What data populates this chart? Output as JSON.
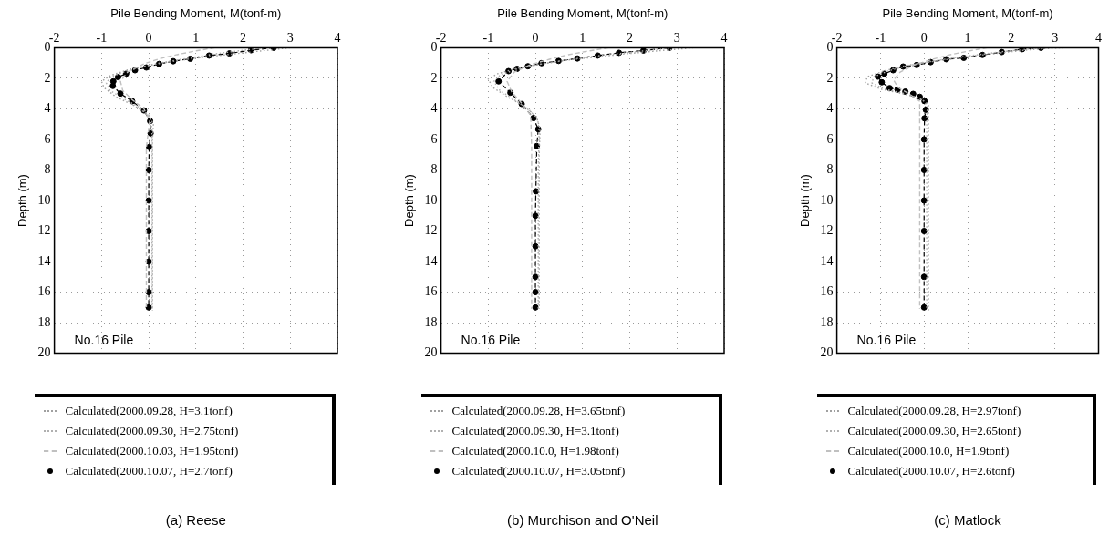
{
  "chart_data": [
    {
      "type": "line",
      "title": "(a) Reese",
      "xlabel": "Pile Bending Moment, M(tonf-m)",
      "ylabel": "Depth (m)",
      "annotations": [
        "No.16 Pile"
      ],
      "xlim": [
        -2,
        4
      ],
      "xticks": [
        -2,
        -1,
        0,
        1,
        2,
        3,
        4
      ],
      "ylim": [
        20,
        0
      ],
      "yticks": [
        0,
        2,
        4,
        6,
        8,
        10,
        12,
        14,
        16,
        18,
        20
      ],
      "grid": true,
      "legend": "bottom",
      "series": [
        {
          "name": "Calculated(2000.09.28, H=3.1tonf)",
          "color": "#a0a0a0",
          "marker": "none",
          "line_style": "dotted",
          "x": [
            3.0,
            2.4,
            1.8,
            1.2,
            0.6,
            0.1,
            -0.4,
            -0.8,
            -1.0,
            -0.95,
            -0.7,
            -0.3,
            0.0,
            0.1,
            0.08,
            0.08,
            0.08
          ],
          "values": [
            0,
            0.2,
            0.4,
            0.6,
            0.85,
            1.1,
            1.4,
            1.8,
            2.2,
            2.6,
            3.2,
            3.8,
            4.4,
            5.0,
            6.0,
            10,
            17.2
          ]
        },
        {
          "name": "Calculated(2000.09.30, H=2.75tonf)",
          "color": "#b0b0b0",
          "marker": "none",
          "line_style": "dotted",
          "x": [
            2.45,
            1.9,
            1.4,
            0.9,
            0.4,
            0,
            -0.45,
            -0.8,
            -0.9,
            -0.82,
            -0.55,
            -0.2,
            0.04,
            0.07,
            0.07,
            0.07
          ],
          "values": [
            0,
            0.2,
            0.4,
            0.65,
            0.9,
            1.15,
            1.5,
            1.9,
            2.3,
            2.8,
            3.3,
            3.9,
            4.6,
            5.4,
            8,
            17.1
          ]
        },
        {
          "name": "Calculated(2000.10.03, H=1.95tonf)",
          "color": "#c0c0c0",
          "marker": "none",
          "line_style": "dashed",
          "x": [
            1.4,
            1.0,
            0.6,
            0.25,
            -0.1,
            -0.45,
            -0.6,
            -0.55,
            -0.35,
            -0.1,
            0.02,
            -0.05,
            -0.05,
            -0.05
          ],
          "values": [
            0,
            0.2,
            0.45,
            0.7,
            1.05,
            1.6,
            2.2,
            2.8,
            3.4,
            4.0,
            4.8,
            6.5,
            12,
            17.1
          ]
        },
        {
          "name": "Calculated(2000.10.07, H=2.7tonf)",
          "color": "#000000",
          "marker": "circle",
          "line_style": "dashed",
          "x": [
            2.65,
            2.17,
            1.71,
            1.28,
            0.88,
            0.52,
            0.22,
            -0.05,
            -0.29,
            -0.48,
            -0.65,
            -0.75,
            -0.76,
            -0.6,
            -0.35,
            -0.1,
            0.03,
            0.04,
            0.01,
            0,
            0,
            0,
            0,
            0,
            0
          ],
          "values": [
            0,
            0.16,
            0.37,
            0.51,
            0.72,
            0.88,
            1.06,
            1.29,
            1.47,
            1.7,
            1.92,
            2.2,
            2.5,
            3.0,
            3.5,
            4.1,
            4.8,
            5.6,
            6.5,
            8,
            10,
            12,
            14,
            16,
            17
          ]
        }
      ]
    },
    {
      "type": "line",
      "title": "(b) Murchison and O'Neil",
      "xlabel": "Pile Bending Moment, M(tonf-m)",
      "ylabel": "Depth (m)",
      "annotations": [
        "No.16 Pile"
      ],
      "xlim": [
        -2,
        4
      ],
      "xticks": [
        -2,
        -1,
        0,
        1,
        2,
        3,
        4
      ],
      "ylim": [
        20,
        0
      ],
      "yticks": [
        0,
        2,
        4,
        6,
        8,
        10,
        12,
        14,
        16,
        18,
        20
      ],
      "grid": true,
      "legend": "bottom",
      "series": [
        {
          "name": "Calculated(2000.09.28, H=3.65tonf)",
          "color": "#a0a0a0",
          "marker": "none",
          "line_style": "dotted",
          "x": [
            3.35,
            2.6,
            1.9,
            1.3,
            0.7,
            0.15,
            -0.4,
            -0.8,
            -1.0,
            -0.9,
            -0.6,
            -0.25,
            0.02,
            0.1,
            0.08,
            0.08
          ],
          "values": [
            0,
            0.2,
            0.4,
            0.6,
            0.8,
            1.05,
            1.35,
            1.7,
            2.05,
            2.6,
            3.2,
            3.8,
            4.5,
            5.3,
            7,
            17.1
          ]
        },
        {
          "name": "Calculated(2000.09.30, H=3.1tonf)",
          "color": "#b0b0b0",
          "marker": "none",
          "line_style": "dotted",
          "x": [
            2.9,
            2.3,
            1.7,
            1.1,
            0.55,
            0.05,
            -0.4,
            -0.75,
            -0.88,
            -0.75,
            -0.45,
            -0.15,
            0.05,
            0.08,
            0.06,
            0.06
          ],
          "values": [
            0,
            0.2,
            0.4,
            0.6,
            0.85,
            1.1,
            1.4,
            1.8,
            2.2,
            2.8,
            3.4,
            4.0,
            4.7,
            5.5,
            8,
            17.1
          ]
        },
        {
          "name": "Calculated(2000.10.0, H=1.98tonf)",
          "color": "#c0c0c0",
          "marker": "none",
          "line_style": "dashed",
          "x": [
            1.55,
            1.15,
            0.7,
            0.3,
            -0.1,
            -0.45,
            -0.6,
            -0.5,
            -0.3,
            -0.1,
            -0.08,
            -0.08
          ],
          "values": [
            0,
            0.2,
            0.45,
            0.75,
            1.1,
            1.6,
            2.2,
            2.9,
            3.6,
            4.4,
            6.5,
            17.1
          ]
        },
        {
          "name": "Calculated(2000.10.07, H=3.05tonf)",
          "color": "#000000",
          "marker": "circle",
          "line_style": "dashed",
          "x": [
            2.84,
            2.29,
            1.77,
            1.32,
            0.89,
            0.49,
            0.13,
            -0.16,
            -0.39,
            -0.57,
            -0.78,
            -0.53,
            -0.29,
            -0.04,
            0.06,
            0.03,
            0.01,
            0,
            0,
            0,
            0,
            0
          ],
          "values": [
            0,
            0.18,
            0.33,
            0.51,
            0.7,
            0.86,
            1.01,
            1.21,
            1.38,
            1.53,
            2.2,
            2.94,
            3.68,
            4.6,
            5.33,
            6.43,
            9.4,
            11,
            13,
            15,
            16,
            17
          ]
        }
      ]
    },
    {
      "type": "line",
      "title": "(c) Matlock",
      "xlabel": "Pile Bending Moment, M(tonf-m)",
      "ylabel": "Depth (m)",
      "annotations": [
        "No.16 Pile"
      ],
      "xlim": [
        -2,
        4
      ],
      "xticks": [
        -2,
        -1,
        0,
        1,
        2,
        3,
        4
      ],
      "ylim": [
        20,
        0
      ],
      "yticks": [
        0,
        2,
        4,
        6,
        8,
        10,
        12,
        14,
        16,
        18,
        20
      ],
      "grid": true,
      "legend": "bottom",
      "series": [
        {
          "name": "Calculated(2000.09.28, H=2.97tonf)",
          "color": "#a0a0a0",
          "marker": "none",
          "line_style": "dotted",
          "x": [
            3.2,
            2.6,
            2.0,
            1.4,
            0.8,
            0.2,
            -0.4,
            -0.9,
            -1.3,
            -1.35,
            -1.0,
            -0.5,
            -0.1,
            0.1,
            0.1,
            0.1
          ],
          "values": [
            0,
            0.08,
            0.25,
            0.45,
            0.65,
            0.9,
            1.15,
            1.5,
            1.9,
            2.3,
            2.7,
            3.0,
            3.3,
            3.7,
            4.5,
            17.2
          ]
        },
        {
          "name": "Calculated(2000.09.30, H=2.65tonf)",
          "color": "#b0b0b0",
          "marker": "none",
          "line_style": "dotted",
          "x": [
            2.9,
            2.4,
            1.8,
            1.25,
            0.7,
            0.15,
            -0.35,
            -0.8,
            -1.15,
            -1.2,
            -0.9,
            -0.45,
            -0.05,
            0.08,
            0.06,
            0.06
          ],
          "values": [
            0,
            0.08,
            0.25,
            0.45,
            0.65,
            0.9,
            1.15,
            1.5,
            1.9,
            2.3,
            2.7,
            3.0,
            3.35,
            3.8,
            4.5,
            17.1
          ]
        },
        {
          "name": "Calculated(2000.10.0, H=1.9tonf)",
          "color": "#c0c0c0",
          "marker": "none",
          "line_style": "dashed",
          "x": [
            1.45,
            1.05,
            0.6,
            0.2,
            -0.2,
            -0.55,
            -0.7,
            -0.6,
            -0.35,
            -0.1,
            -0.1,
            -0.1
          ],
          "values": [
            0,
            0.2,
            0.45,
            0.75,
            1.1,
            1.6,
            2.1,
            2.6,
            3.0,
            3.5,
            4.5,
            17.1
          ]
        },
        {
          "name": "Calculated(2000.10.07, H=2.6tonf)",
          "color": "#000000",
          "marker": "circle",
          "line_style": "dashed",
          "x": [
            2.68,
            2.25,
            1.78,
            1.34,
            0.91,
            0.51,
            0.15,
            -0.17,
            -0.48,
            -0.71,
            -0.91,
            -1.06,
            -0.97,
            -0.79,
            -0.61,
            -0.43,
            -0.25,
            -0.1,
            0.01,
            0.04,
            0.01,
            0,
            0,
            0,
            0,
            0,
            0
          ],
          "values": [
            0,
            0.09,
            0.28,
            0.47,
            0.66,
            0.75,
            0.94,
            1.13,
            1.23,
            1.47,
            1.7,
            1.89,
            2.26,
            2.64,
            2.74,
            2.87,
            3.02,
            3.21,
            3.49,
            4.06,
            4.62,
            6,
            8,
            10,
            12,
            15,
            17
          ]
        }
      ]
    }
  ]
}
